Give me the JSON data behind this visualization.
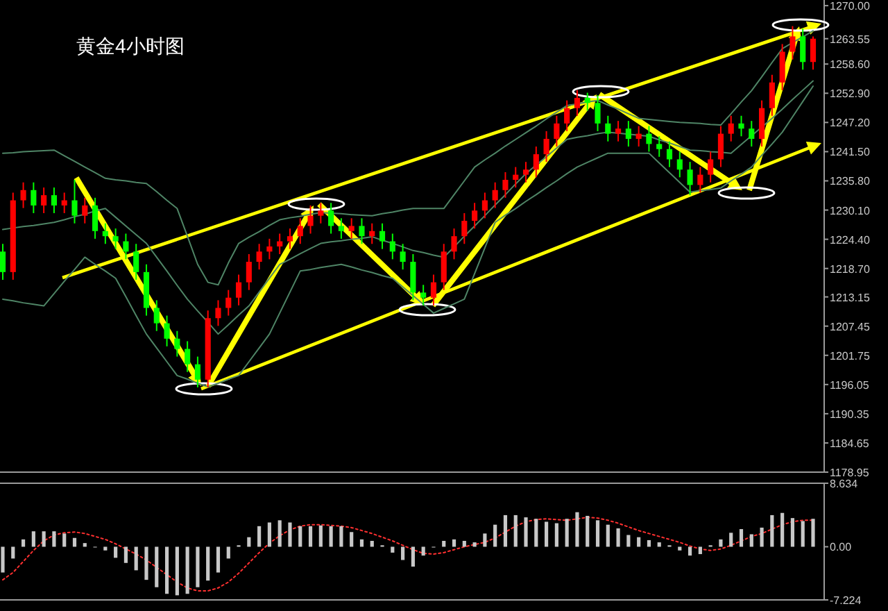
{
  "chart_data": [
    {
      "type": "candlestick",
      "title": "黄金4小时图",
      "tick_labels": "y",
      "grid": false,
      "categories": [
        null,
        null,
        null,
        null,
        null,
        null,
        null,
        null,
        null,
        null,
        null,
        null,
        null,
        null,
        null,
        null,
        null,
        null,
        null,
        null,
        null,
        null,
        null,
        null,
        null,
        null,
        null,
        null,
        null,
        null,
        null,
        null,
        null,
        null,
        null,
        null,
        null,
        null,
        null,
        null,
        null,
        null,
        null,
        null,
        null,
        null,
        null,
        null,
        null,
        null,
        null,
        null,
        null,
        null,
        null,
        null,
        null,
        null,
        null,
        null,
        null,
        null,
        null,
        null,
        null,
        null,
        null,
        null,
        null,
        null,
        null,
        null,
        null,
        null,
        null,
        null,
        null,
        null,
        null,
        null
      ],
      "ohlc": [
        [
          1222,
          1223.5,
          1216.5,
          1218
        ],
        [
          1218,
          1233.5,
          1216.5,
          1232
        ],
        [
          1232,
          1235.5,
          1230.5,
          1234
        ],
        [
          1234,
          1235.5,
          1229.5,
          1231
        ],
        [
          1231,
          1234.5,
          1229.5,
          1233
        ],
        [
          1233,
          1234.5,
          1229.5,
          1231
        ],
        [
          1231,
          1233.5,
          1229.5,
          1232
        ],
        [
          1232,
          1236,
          1227.5,
          1229
        ],
        [
          1229,
          1232.5,
          1227.5,
          1231
        ],
        [
          1231,
          1232.5,
          1224.5,
          1226
        ],
        [
          1226,
          1227.5,
          1223.5,
          1225
        ],
        [
          1225,
          1226.5,
          1222.5,
          1224
        ],
        [
          1224,
          1225.5,
          1220.5,
          1222
        ],
        [
          1222,
          1223.5,
          1216.5,
          1218
        ],
        [
          1218,
          1219.5,
          1209.5,
          1211
        ],
        [
          1211,
          1212.5,
          1206.5,
          1208
        ],
        [
          1208,
          1209.5,
          1203.5,
          1205
        ],
        [
          1205,
          1206.5,
          1201.5,
          1203
        ],
        [
          1203,
          1204.5,
          1198.5,
          1200
        ],
        [
          1200,
          1201.5,
          1195.5,
          1197
        ],
        [
          1197,
          1210.5,
          1195.5,
          1209
        ],
        [
          1209,
          1212.5,
          1207.5,
          1211
        ],
        [
          1211,
          1214.5,
          1209.5,
          1213
        ],
        [
          1213,
          1217.5,
          1211.5,
          1216
        ],
        [
          1216,
          1221.5,
          1214.5,
          1220
        ],
        [
          1220,
          1223.5,
          1218.5,
          1222
        ],
        [
          1222,
          1224.5,
          1220.5,
          1223
        ],
        [
          1223,
          1225.5,
          1221.5,
          1224
        ],
        [
          1224,
          1226.5,
          1222.5,
          1225
        ],
        [
          1225,
          1228.5,
          1223.5,
          1227
        ],
        [
          1227,
          1231,
          1225.5,
          1229
        ],
        [
          1229,
          1231.5,
          1227.5,
          1230
        ],
        [
          1230,
          1231.5,
          1225.5,
          1227
        ],
        [
          1227,
          1228.5,
          1224.5,
          1226
        ],
        [
          1226,
          1228.5,
          1224.5,
          1227
        ],
        [
          1227,
          1228.5,
          1223.5,
          1225
        ],
        [
          1225,
          1227.5,
          1223.5,
          1226
        ],
        [
          1226,
          1227.5,
          1222.5,
          1224
        ],
        [
          1224,
          1225.5,
          1220.5,
          1222
        ],
        [
          1222,
          1223.5,
          1218.5,
          1220
        ],
        [
          1220,
          1221.5,
          1212.5,
          1214
        ],
        [
          1214,
          1215.5,
          1211.5,
          1213
        ],
        [
          1213,
          1217.5,
          1211.5,
          1216
        ],
        [
          1216,
          1223.5,
          1214.5,
          1222
        ],
        [
          1222,
          1226.5,
          1220.5,
          1225
        ],
        [
          1225,
          1229.5,
          1223.5,
          1228
        ],
        [
          1228,
          1231.5,
          1226.5,
          1230
        ],
        [
          1230,
          1233.5,
          1228.5,
          1232
        ],
        [
          1232,
          1235.5,
          1230.5,
          1234
        ],
        [
          1234,
          1237.5,
          1232.5,
          1236
        ],
        [
          1236,
          1238.5,
          1234.5,
          1237
        ],
        [
          1237,
          1239.5,
          1235.5,
          1238
        ],
        [
          1238,
          1242.5,
          1236.5,
          1241
        ],
        [
          1241,
          1245.5,
          1239.5,
          1244
        ],
        [
          1244,
          1248.5,
          1242.5,
          1247
        ],
        [
          1247,
          1251.5,
          1245.5,
          1250
        ],
        [
          1250,
          1253.5,
          1248.5,
          1252
        ],
        [
          1252,
          1253,
          1249.5,
          1251
        ],
        [
          1251,
          1252.5,
          1245.5,
          1247
        ],
        [
          1247,
          1248.5,
          1243.5,
          1245
        ],
        [
          1245,
          1247.5,
          1243.5,
          1246
        ],
        [
          1246,
          1247.5,
          1242.5,
          1244
        ],
        [
          1244,
          1246.5,
          1242.5,
          1245
        ],
        [
          1245,
          1246.5,
          1241.5,
          1243
        ],
        [
          1243,
          1244.5,
          1240.5,
          1242
        ],
        [
          1242,
          1243.5,
          1238.5,
          1240
        ],
        [
          1240,
          1241.5,
          1236.5,
          1238
        ],
        [
          1238,
          1239.5,
          1233,
          1235
        ],
        [
          1235,
          1238.5,
          1233.5,
          1237
        ],
        [
          1237,
          1241.5,
          1235.5,
          1240
        ],
        [
          1240,
          1246.5,
          1238.5,
          1245
        ],
        [
          1245,
          1248.5,
          1243.5,
          1247
        ],
        [
          1247,
          1248.5,
          1244.5,
          1246
        ],
        [
          1246,
          1247.5,
          1242.5,
          1244
        ],
        [
          1244,
          1251.5,
          1242.5,
          1250
        ],
        [
          1250,
          1256.5,
          1248.5,
          1255
        ],
        [
          1255,
          1262.5,
          1253.5,
          1261
        ],
        [
          1261,
          1266,
          1259.5,
          1264
        ],
        [
          1264,
          1265.5,
          1257.5,
          1259
        ],
        [
          1259,
          1264,
          1257.5,
          1263.55
        ]
      ],
      "colors": [
        "#00ff00",
        "#ff0000",
        "#ff0000",
        "#00ff00",
        "#ff0000",
        "#00ff00",
        "#ff0000",
        "#00ff00",
        "#ff0000",
        "#00ff00",
        "#00ff00",
        "#00ff00",
        "#00ff00",
        "#00ff00",
        "#00ff00",
        "#00ff00",
        "#00ff00",
        "#00ff00",
        "#00ff00",
        "#00ff00",
        "#ff0000",
        "#ff0000",
        "#ff0000",
        "#ff0000",
        "#ff0000",
        "#ff0000",
        "#ff0000",
        "#ff0000",
        "#ff0000",
        "#ff0000",
        "#ff0000",
        "#ff0000",
        "#00ff00",
        "#00ff00",
        "#ff0000",
        "#00ff00",
        "#ff0000",
        "#00ff00",
        "#00ff00",
        "#00ff00",
        "#00ff00",
        "#00ff00",
        "#ff0000",
        "#ff0000",
        "#ff0000",
        "#ff0000",
        "#ff0000",
        "#ff0000",
        "#ff0000",
        "#ff0000",
        "#ff0000",
        "#ff0000",
        "#ff0000",
        "#ff0000",
        "#ff0000",
        "#ff0000",
        "#ff0000",
        "#00ff00",
        "#00ff00",
        "#00ff00",
        "#ff0000",
        "#00ff00",
        "#ff0000",
        "#00ff00",
        "#00ff00",
        "#00ff00",
        "#00ff00",
        "#00ff00",
        "#ff0000",
        "#ff0000",
        "#ff0000",
        "#ff0000",
        "#00ff00",
        "#00ff00",
        "#ff0000",
        "#ff0000",
        "#ff0000",
        "#ff0000",
        "#00ff00",
        "#ff0000"
      ],
      "series": [
        {
          "type": "line",
          "color": "#4f8566",
          "values": [
            1241.2,
            1241.3,
            1241.5,
            1241.6,
            1241.7,
            1241.8,
            1240.7,
            1239.6,
            1238.5,
            1237.4,
            1236.3,
            1236,
            1235.8,
            1235.5,
            1235.3,
            1233.7,
            1232,
            1230.4,
            1225,
            1219.5,
            1216,
            1215.5,
            1219.8,
            1223.6,
            1224.8,
            1225.9,
            1227.1,
            1228.2,
            1228.6,
            1228.9,
            1229.3,
            1229.6,
            1229.5,
            1229.4,
            1229.2,
            1229.1,
            1229,
            1229.4,
            1229.7,
            1230.1,
            1230.4,
            1230.4,
            1230.4,
            1230.4,
            1233.1,
            1235.8,
            1238.5,
            1239.9,
            1241.2,
            1242.6,
            1243.9,
            1245.2,
            1246.5,
            1247.9,
            1249.2,
            1250.5,
            1250.8,
            1251.2,
            1251.5,
            1250.6,
            1249.8,
            1248.9,
            1248,
            1247.8,
            1247.6,
            1247.4,
            1247.2,
            1247.1,
            1247,
            1246.8,
            1246.7,
            1248.9,
            1251.2,
            1253.4,
            1256.1,
            1258.9,
            1261.6,
            1262.8,
            1263.9,
            1265.1
          ]
        },
        {
          "type": "line",
          "color": "#4f8566",
          "values": [
            1226.3,
            1226.6,
            1226.9,
            1227.1,
            1227.4,
            1227.7,
            1228.2,
            1228.8,
            1229.3,
            1229.9,
            1230.4,
            1228.7,
            1227,
            1225.3,
            1223.6,
            1220.9,
            1218.2,
            1215.4,
            1212.7,
            1210.4,
            1208.2,
            1205.9,
            1207.7,
            1209.6,
            1211.4,
            1214.1,
            1216.8,
            1219.5,
            1220.5,
            1221.6,
            1222.6,
            1223.6,
            1223.9,
            1224.1,
            1224.4,
            1224.6,
            1224.9,
            1224.2,
            1223.6,
            1222.9,
            1222.2,
            1221.8,
            1221.3,
            1220.9,
            1222.9,
            1225,
            1227,
            1229,
            1231.1,
            1233.1,
            1235.2,
            1237.2,
            1238.9,
            1240.5,
            1242.2,
            1243.9,
            1244.3,
            1244.6,
            1245,
            1245.3,
            1245.1,
            1244.9,
            1244.7,
            1244.5,
            1243.8,
            1243.2,
            1242.5,
            1241.8,
            1241.7,
            1241.5,
            1241.4,
            1241.2,
            1242.9,
            1244.6,
            1246.3,
            1248,
            1249.8,
            1251.7,
            1253.5,
            1255.3
          ]
        },
        {
          "type": "line",
          "color": "#4f8566",
          "values": [
            1212.7,
            1212.4,
            1212,
            1211.7,
            1211.4,
            1213.8,
            1216.2,
            1218.5,
            1220.9,
            1219.5,
            1218.2,
            1216.8,
            1213.2,
            1209.5,
            1205.9,
            1203.2,
            1200.5,
            1197.8,
            1197.1,
            1196.3,
            1195.6,
            1196.3,
            1197.1,
            1197.8,
            1200.5,
            1203.2,
            1205.9,
            1210,
            1214.1,
            1218.2,
            1218.5,
            1218.9,
            1219.2,
            1219.5,
            1219,
            1218.4,
            1217.9,
            1217.3,
            1216.8,
            1215.1,
            1213.4,
            1211.7,
            1210,
            1210.9,
            1211.8,
            1212.7,
            1217.7,
            1222.7,
            1227.7,
            1229.1,
            1230.4,
            1231.8,
            1233.1,
            1234.5,
            1235.8,
            1237.2,
            1238.5,
            1239.4,
            1240.3,
            1241.2,
            1241.2,
            1241.2,
            1241.2,
            1241.2,
            1239.3,
            1237.4,
            1235.5,
            1233.6,
            1233.9,
            1234.1,
            1234.4,
            1235.8,
            1237.1,
            1238.5,
            1240.8,
            1243,
            1245.3,
            1248.3,
            1251.3,
            1254.3
          ]
        }
      ],
      "ylim": [
        1178.95,
        1271.1
      ],
      "yticks": [
        {
          "value": 1270,
          "label": "1270.00"
        },
        {
          "value": 1263.55,
          "label": "1263.55"
        },
        {
          "value": 1258.6,
          "label": "1258.60"
        },
        {
          "value": 1252.9,
          "label": "1252.90"
        },
        {
          "value": 1247.2,
          "label": "1247.20"
        },
        {
          "value": 1241.5,
          "label": "1241.50"
        },
        {
          "value": 1235.8,
          "label": "1235.80"
        },
        {
          "value": 1230.1,
          "label": "1230.10"
        },
        {
          "value": 1224.4,
          "label": "1224.40"
        },
        {
          "value": 1218.7,
          "label": "1218.70"
        },
        {
          "value": 1213.15,
          "label": "1213.15"
        },
        {
          "value": 1207.45,
          "label": "1207.45"
        },
        {
          "value": 1201.75,
          "label": "1201.75"
        },
        {
          "value": 1196.05,
          "label": "1196.05"
        },
        {
          "value": 1190.35,
          "label": "1190.35"
        },
        {
          "value": 1184.65,
          "label": "1184.65"
        },
        {
          "value": 1178.95,
          "label": "1178.95"
        }
      ]
    },
    {
      "type": "bar",
      "tick_labels": "y",
      "grid": false,
      "categories": [
        null,
        null,
        null,
        null,
        null,
        null,
        null,
        null,
        null,
        null,
        null,
        null,
        null,
        null,
        null,
        null,
        null,
        null,
        null,
        null,
        null,
        null,
        null,
        null,
        null,
        null,
        null,
        null,
        null,
        null,
        null,
        null,
        null,
        null,
        null,
        null,
        null,
        null,
        null,
        null,
        null,
        null,
        null,
        null,
        null,
        null,
        null,
        null,
        null,
        null,
        null,
        null,
        null,
        null,
        null,
        null,
        null,
        null,
        null,
        null,
        null,
        null,
        null,
        null,
        null,
        null,
        null,
        null,
        null,
        null,
        null,
        null,
        null,
        null,
        null,
        null,
        null,
        null,
        null,
        null
      ],
      "series": [
        {
          "type": "bar",
          "color": "#c8c8c8",
          "values": [
            -3.5,
            -1.6,
            1,
            2.1,
            2.1,
            2.1,
            1.8,
            1.2,
            0.5,
            0,
            -0.5,
            -1.5,
            -2.2,
            -3.2,
            -4.5,
            -5.5,
            -6.4,
            -6.6,
            -6.4,
            -5.5,
            -4.6,
            -3.5,
            -1.6,
            0.2,
            1.3,
            2.8,
            3.3,
            3.6,
            3.3,
            2.8,
            2.8,
            2.9,
            2.8,
            2.8,
            2,
            1,
            0.8,
            0.2,
            -0.8,
            -1.8,
            -2.7,
            -1.2,
            -0.1,
            0.8,
            1,
            0.8,
            0.6,
            1.8,
            3,
            4.3,
            4.3,
            4,
            3.8,
            3.4,
            3.2,
            3.8,
            4.7,
            4.2,
            3.6,
            3,
            2.5,
            1.6,
            1.3,
            0.9,
            0.6,
            0.2,
            -0.5,
            -1.2,
            -1,
            0.2,
            1,
            1.9,
            2.4,
            1.7,
            2.6,
            4.3,
            4.6,
            3.9,
            3.5,
            3.8
          ]
        },
        {
          "type": "line",
          "color": "#ff3030",
          "line_style": "dotted",
          "values": [
            -4.5,
            -3.5,
            -2,
            -0.5,
            0.8,
            1.6,
            1.9,
            2,
            1.8,
            1.4,
            1,
            0.4,
            -0.3,
            -1,
            -1.8,
            -2.8,
            -3.8,
            -4.8,
            -5.6,
            -6,
            -6,
            -5.6,
            -4.8,
            -3.6,
            -2.2,
            -0.8,
            0.5,
            1.5,
            2.3,
            2.8,
            3,
            3,
            2.9,
            2.8,
            2.6,
            2.2,
            1.8,
            1.3,
            0.8,
            0.2,
            -0.4,
            -0.9,
            -1,
            -0.8,
            -0.4,
            0,
            0.3,
            0.6,
            1.2,
            2,
            2.8,
            3.4,
            3.7,
            3.8,
            3.7,
            3.6,
            3.8,
            4,
            3.9,
            3.6,
            3.2,
            2.7,
            2.2,
            1.8,
            1.4,
            1,
            0.6,
            0.1,
            -0.3,
            -0.5,
            -0.3,
            0.2,
            0.8,
            1.4,
            1.8,
            2.4,
            3,
            3.4,
            3.6,
            3.6
          ]
        }
      ],
      "ylim": [
        -7.224,
        8.634
      ],
      "yticks": [
        8.634,
        {
          "value": 0,
          "label": "0.00"
        },
        -7.224
      ]
    }
  ]
}
